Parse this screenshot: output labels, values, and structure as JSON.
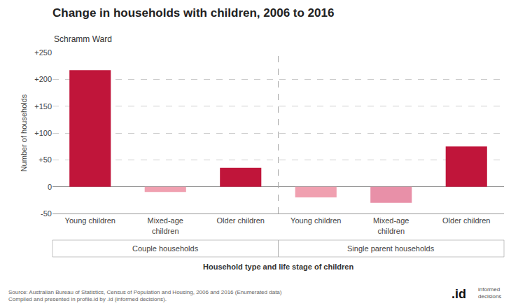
{
  "chart_data": {
    "type": "bar",
    "title": "Change in households with children, 2006 to 2016",
    "subtitle": "Schramm Ward",
    "xlabel": "Household type and life stage of children",
    "ylabel": "Number of households",
    "categories": [
      "Young children",
      "Mixed-age\nchildren",
      "Older children",
      "Young children",
      "Mixed-age\nchildren",
      "Older children"
    ],
    "group_labels": [
      "Couple households",
      "Single parent households"
    ],
    "values": [
      217,
      -10,
      35,
      -20,
      -30,
      75
    ],
    "colors": [
      "#c0153a",
      "#f0a0b0",
      "#c0153a",
      "#f0a0b0",
      "#e890a8",
      "#c0153a"
    ],
    "ylim": [
      -50,
      250
    ],
    "yticks": [
      -50,
      0,
      {
        "value": 50,
        "label": "+50"
      },
      {
        "value": 100,
        "label": "+100"
      },
      {
        "value": 150,
        "label": "+150"
      },
      {
        "value": 200,
        "label": "+200"
      },
      {
        "value": 250,
        "label": "+250"
      }
    ],
    "grid": true,
    "source": [
      "Source: Australian Bureau of Statistics, Census of Population and Housing, 2006 and 2016 (Enumerated data)",
      "Compiled and presented in profile.id by .id (informed decisions)."
    ],
    "annotations": [
      ".id",
      "informed\ndecisions"
    ]
  }
}
